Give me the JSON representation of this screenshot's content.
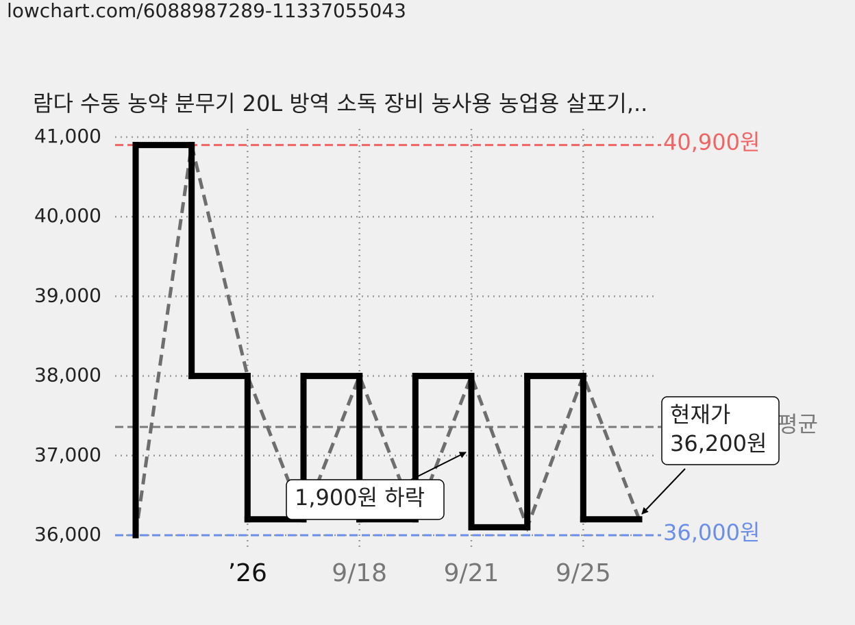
{
  "header": {
    "url": "lowchart.com/6088987289-11337055043"
  },
  "chart_data": {
    "type": "step-line",
    "title": "람다 수동 농약 분무기 20L 방역 소독 장비 농사용 농업용 살포기,..",
    "categories": [
      null,
      null,
      "’26",
      null,
      "9/18",
      null,
      "9/21",
      null,
      "9/25",
      null
    ],
    "series": [
      {
        "values": [
          36000,
          40900,
          38000,
          36200,
          38000,
          36200,
          38000,
          36100,
          38000,
          36200
        ],
        "color": "#000000",
        "trend_color": "#6e6e6e"
      }
    ],
    "ylim": [
      36000,
      41000
    ],
    "yticks": [
      {
        "value": 36000,
        "label": "36,000"
      },
      {
        "value": 37000,
        "label": "37,000"
      },
      {
        "value": 38000,
        "label": "38,000"
      },
      {
        "value": 39000,
        "label": "39,000"
      },
      {
        "value": 40000,
        "label": "40,000"
      },
      {
        "value": 41000,
        "label": "41,000"
      }
    ],
    "grid": true,
    "reference_lines": [
      {
        "value": 40900,
        "label": "40,900원",
        "color": "#f06464"
      },
      {
        "value": 36000,
        "label": "36,000원",
        "color": "#6b8ee8"
      },
      {
        "value": 37360,
        "label": "평균",
        "color": "#7a7a7a"
      }
    ],
    "annotations": [
      {
        "lines": [
          "1,900원 하락"
        ]
      },
      {
        "lines": [
          "현재가",
          "36,200원"
        ]
      }
    ]
  }
}
